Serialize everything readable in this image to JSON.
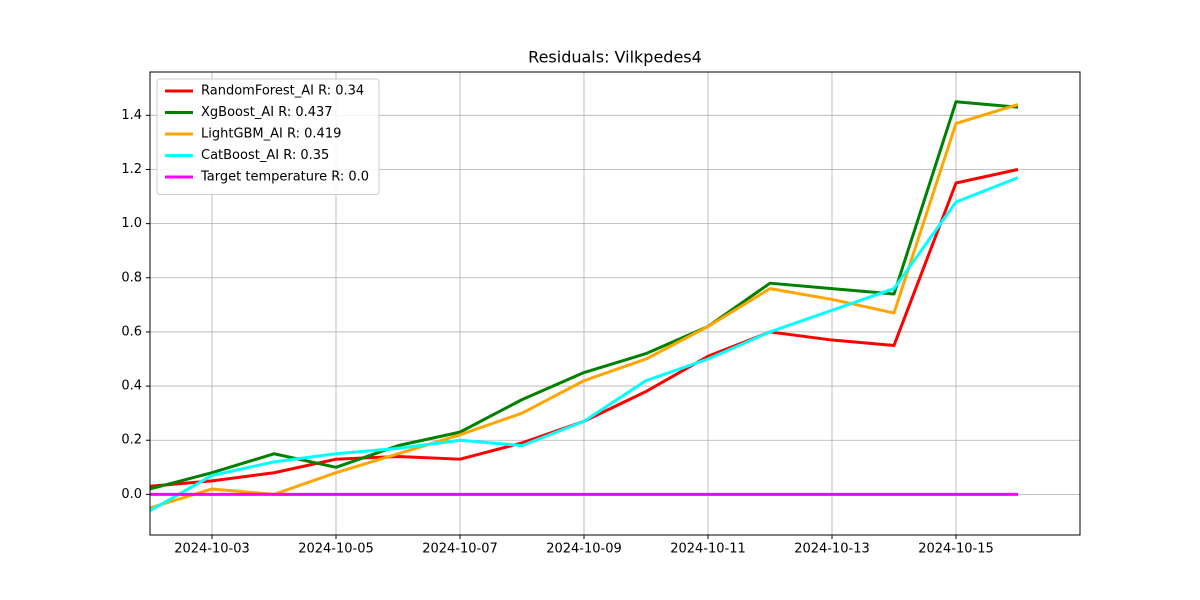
{
  "chart_data": {
    "type": "line",
    "title": "Residuals: Vilkpedes4",
    "x": [
      "2024-10-02",
      "2024-10-03",
      "2024-10-04",
      "2024-10-05",
      "2024-10-06",
      "2024-10-07",
      "2024-10-08",
      "2024-10-09",
      "2024-10-10",
      "2024-10-11",
      "2024-10-12",
      "2024-10-13",
      "2024-10-14",
      "2024-10-15",
      "2024-10-16"
    ],
    "series": [
      {
        "name": "RandomForest_AI R: 0.34",
        "color": "#ff0000",
        "values": [
          0.03,
          0.05,
          0.08,
          0.13,
          0.14,
          0.13,
          0.19,
          0.27,
          0.38,
          0.51,
          0.6,
          0.57,
          0.55,
          1.15,
          1.2
        ]
      },
      {
        "name": "XgBoost_AI R: 0.437",
        "color": "#008000",
        "values": [
          0.02,
          0.08,
          0.15,
          0.1,
          0.18,
          0.23,
          0.35,
          0.45,
          0.52,
          0.62,
          0.78,
          0.76,
          0.74,
          1.45,
          1.43
        ]
      },
      {
        "name": "LightGBM_AI R: 0.419",
        "color": "#ffa500",
        "values": [
          -0.05,
          0.02,
          0.0,
          0.08,
          0.15,
          0.22,
          0.3,
          0.42,
          0.5,
          0.62,
          0.76,
          0.72,
          0.67,
          1.37,
          1.44
        ]
      },
      {
        "name": "CatBoost_AI R: 0.35",
        "color": "#00ffff",
        "values": [
          -0.06,
          0.07,
          0.12,
          0.15,
          0.17,
          0.2,
          0.18,
          0.27,
          0.42,
          0.5,
          0.6,
          0.68,
          0.76,
          1.08,
          1.17
        ]
      },
      {
        "name": "Target temperature R: 0.0",
        "color": "#ff00ff",
        "values": [
          0,
          0,
          0,
          0,
          0,
          0,
          0,
          0,
          0,
          0,
          0,
          0,
          0,
          0,
          0
        ]
      }
    ],
    "xlim": [
      "2024-10-02",
      "2024-10-17"
    ],
    "xticks": [
      "2024-10-03",
      "2024-10-05",
      "2024-10-07",
      "2024-10-09",
      "2024-10-11",
      "2024-10-13",
      "2024-10-15"
    ],
    "ylim": [
      -0.15,
      1.56
    ],
    "yticks": [
      {
        "value": 0,
        "label": "0.0"
      },
      0.2,
      0.4,
      0.6,
      0.8,
      {
        "value": 1,
        "label": "1.0"
      },
      1.2,
      1.4
    ],
    "grid": true,
    "legend": "upper left"
  }
}
